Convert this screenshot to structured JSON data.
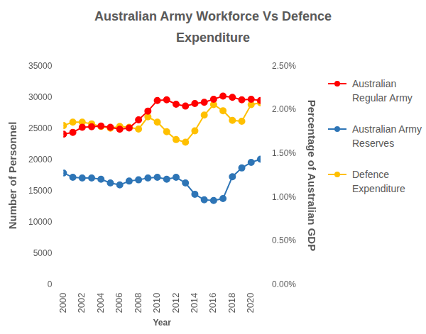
{
  "chart_data": {
    "type": "line",
    "title": "Australian Army Workforce Vs Defence Expenditure",
    "x_label": "Year",
    "y_label": "Number of Personnel",
    "y2_label": "Percentage of Australian GDP",
    "categories": [
      "2000",
      null,
      "2002",
      null,
      "2004",
      null,
      "2006",
      null,
      "2008",
      null,
      "2010",
      null,
      "2012",
      null,
      "2014",
      null,
      "2016",
      null,
      "2018",
      null,
      "2020",
      null
    ],
    "series": [
      {
        "name": "Australian Regular Army",
        "color": "#ff0000",
        "marker": "circle",
        "line_style": "solid",
        "values": [
          24100,
          24400,
          25200,
          25300,
          25400,
          25200,
          24900,
          25100,
          26400,
          27800,
          29500,
          29600,
          28900,
          28600,
          29000,
          29200,
          29700,
          30200,
          30000,
          29600,
          29700,
          29500
        ]
      },
      {
        "name": "Australian Army Reserves",
        "color": "#2e75b6",
        "marker": "circle",
        "line_style": "solid",
        "values": [
          17900,
          17200,
          17100,
          17100,
          16900,
          16300,
          16000,
          16600,
          16800,
          17100,
          17200,
          16900,
          17200,
          16300,
          14500,
          13600,
          13500,
          13800,
          17300,
          18700,
          19600,
          20100
        ]
      },
      {
        "name": "Defence Expenditure",
        "color": "#ffc000",
        "marker": "circle",
        "line_style": "solid",
        "axis": "y2",
        "values": [
          1.82,
          1.86,
          1.86,
          1.84,
          1.81,
          1.79,
          1.81,
          1.8,
          1.78,
          1.92,
          1.86,
          1.75,
          1.66,
          1.63,
          1.76,
          1.94,
          2.06,
          1.99,
          1.88,
          1.87,
          2.06,
          2.08
        ]
      }
    ],
    "ylim": [
      0,
      35000
    ],
    "yticks": [
      0,
      5000,
      10000,
      15000,
      20000,
      25000,
      30000,
      35000
    ],
    "y2lim": [
      0,
      2.5
    ],
    "y2ticks": [
      {
        "value": 0,
        "label": "0.00%"
      },
      {
        "value": 0.5,
        "label": "0.50%"
      },
      {
        "value": 1,
        "label": "1.00%"
      },
      {
        "value": 1.5,
        "label": "1.50%"
      },
      {
        "value": 2,
        "label": "2.00%"
      },
      {
        "value": 2.5,
        "label": "2.50%"
      }
    ],
    "grid": false,
    "legend": "right"
  }
}
